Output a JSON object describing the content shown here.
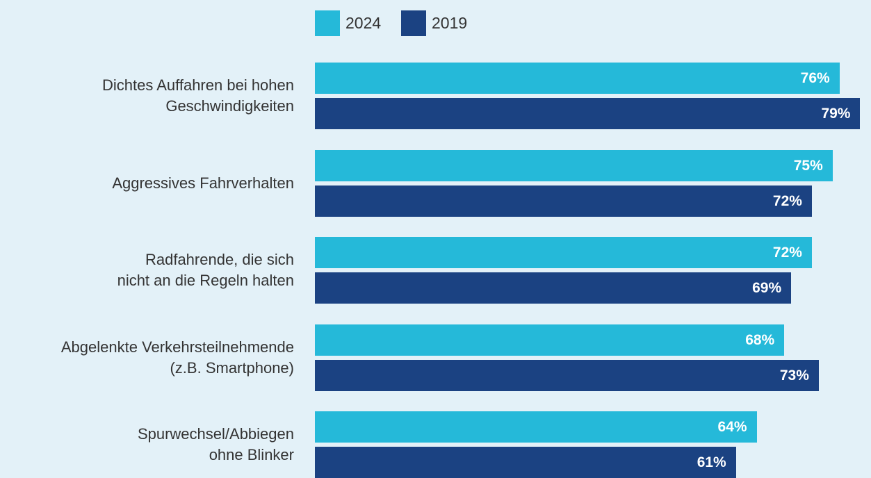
{
  "chart_data": {
    "type": "bar",
    "orientation": "horizontal",
    "categories": [
      "Dichtes Auffahren bei hohen\nGeschwindigkeiten",
      "Aggressives Fahrverhalten",
      "Radfahrende, die sich\nnicht an die Regeln halten",
      "Abgelenkte Verkehrsteilnehmende\n(z.B. Smartphone)",
      "Spurwechsel/Abbiegen\nohne Blinker"
    ],
    "series": [
      {
        "name": "2024",
        "color": "#25b9d9",
        "values": [
          76,
          75,
          72,
          68,
          64
        ],
        "value_labels": [
          "76%",
          "75%",
          "72%",
          "68%",
          "64%"
        ]
      },
      {
        "name": "2019",
        "color": "#1b4282",
        "values": [
          79,
          72,
          69,
          73,
          61
        ],
        "value_labels": [
          "79%",
          "72%",
          "69%",
          "73%",
          "61%"
        ]
      }
    ],
    "xlim": [
      0,
      100
    ]
  }
}
